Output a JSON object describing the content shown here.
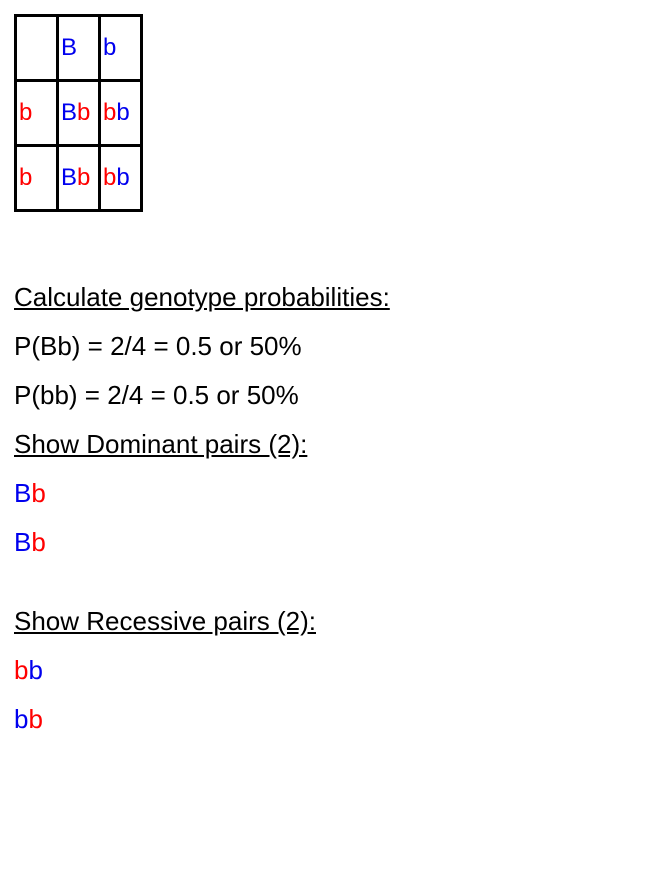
{
  "colors": {
    "dominant": "#0000ee",
    "recessive_red": "#ff0000",
    "recessive_blue": "#0000ee",
    "text": "#000000",
    "border": "#000000",
    "background": "#ffffff"
  },
  "punnett": {
    "col_headers": [
      "B",
      "b"
    ],
    "row_headers": [
      "b",
      "b"
    ],
    "cells": [
      [
        {
          "a1": "B",
          "a1_color": "dominant",
          "a2": "b",
          "a2_color": "recessive_red"
        },
        {
          "a1": "b",
          "a1_color": "recessive_red",
          "a2": "b",
          "a2_color": "recessive_blue"
        }
      ],
      [
        {
          "a1": "B",
          "a1_color": "dominant",
          "a2": "b",
          "a2_color": "recessive_red"
        },
        {
          "a1": "b",
          "a1_color": "recessive_red",
          "a2": "b",
          "a2_color": "recessive_blue"
        }
      ]
    ]
  },
  "sections": {
    "prob_heading": "Calculate genotype probabilities:",
    "prob_lines": [
      "P(Bb) = 2/4 = 0.5 or 50%",
      "P(bb) = 2/4 = 0.5 or 50%"
    ],
    "dominant_heading": "Show Dominant pairs (2):",
    "dominant_pairs": [
      {
        "a1": "B",
        "a1_color": "dominant",
        "a2": "b",
        "a2_color": "recessive_red"
      },
      {
        "a1": "B",
        "a1_color": "dominant",
        "a2": "b",
        "a2_color": "recessive_red"
      }
    ],
    "recessive_heading": "Show Recessive pairs (2):",
    "recessive_pairs": [
      {
        "a1": "b",
        "a1_color": "recessive_red",
        "a2": "b",
        "a2_color": "recessive_blue"
      },
      {
        "a1": "b",
        "a1_color": "recessive_blue",
        "a2": "b",
        "a2_color": "recessive_red"
      }
    ]
  }
}
